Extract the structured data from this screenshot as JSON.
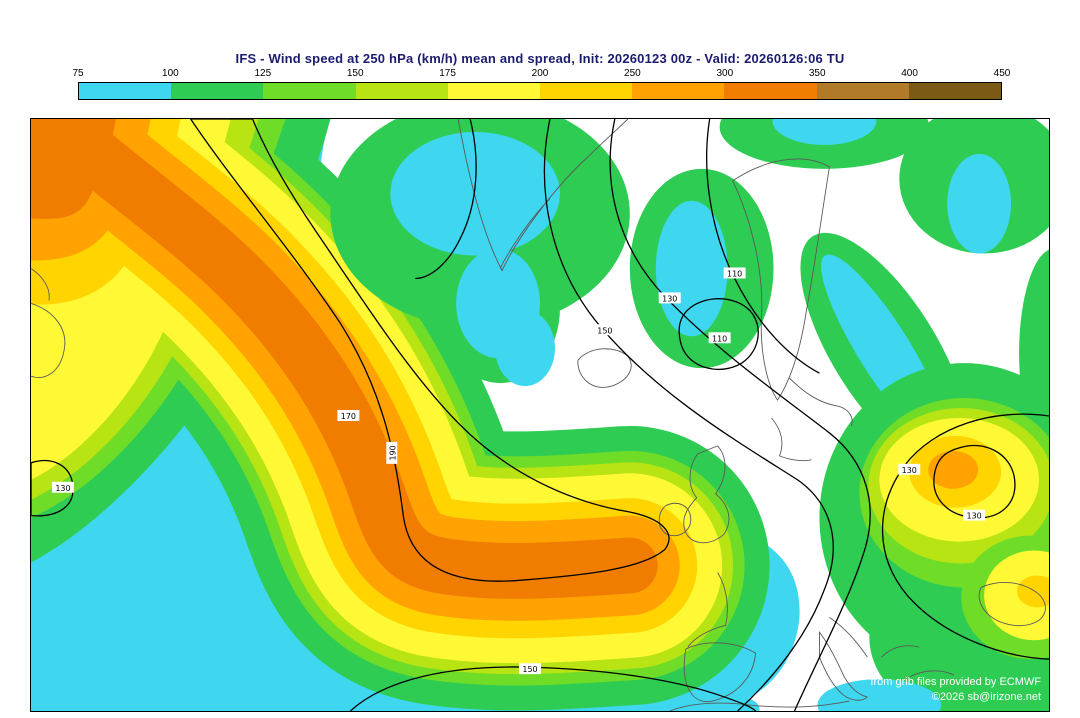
{
  "header": {
    "title": "IFS - Wind speed at 250 hPa (km/h) mean and spread, Init: 20260123 00z - Valid: 20260126:06 TU"
  },
  "colorbar": {
    "tick_labels": [
      "75",
      "100",
      "125",
      "150",
      "175",
      "200",
      "250",
      "300",
      "350",
      "400",
      "450"
    ],
    "segment_colors": [
      "#3ed7ef",
      "#2ecc52",
      "#6fdc28",
      "#b8e414",
      "#fff835",
      "#ffd400",
      "#ffa202",
      "#f07c00",
      "#b07a28",
      "#7a5a14"
    ]
  },
  "map": {
    "contour_labels": [
      "150",
      "130",
      "170",
      "110",
      "130",
      "150",
      "190",
      "130",
      "110",
      "130"
    ]
  },
  "attribution": {
    "line1": "from grib files provided by ECMWF",
    "line2": "©2026 sb@irizone.net"
  },
  "chart_data": {
    "type": "heatmap",
    "title": "IFS - Wind speed at 250 hPa (km/h) mean and spread",
    "model": "IFS",
    "variable": "Wind speed at 250 hPa",
    "units": "km/h",
    "init_time": "20260123 00z",
    "valid_time": "20260126:06 TU",
    "legend_position": "top",
    "levels": [
      75,
      100,
      125,
      150,
      175,
      200,
      250,
      300,
      350,
      400,
      450
    ],
    "palette": [
      "#3ed7ef",
      "#2ecc52",
      "#6fdc28",
      "#b8e414",
      "#fff835",
      "#ffd400",
      "#ffa202",
      "#f07c00",
      "#b07a28",
      "#7a5a14"
    ],
    "contour_label_values": [
      110,
      130,
      150,
      170,
      190
    ],
    "max_shaded_level_visible": 350
  }
}
